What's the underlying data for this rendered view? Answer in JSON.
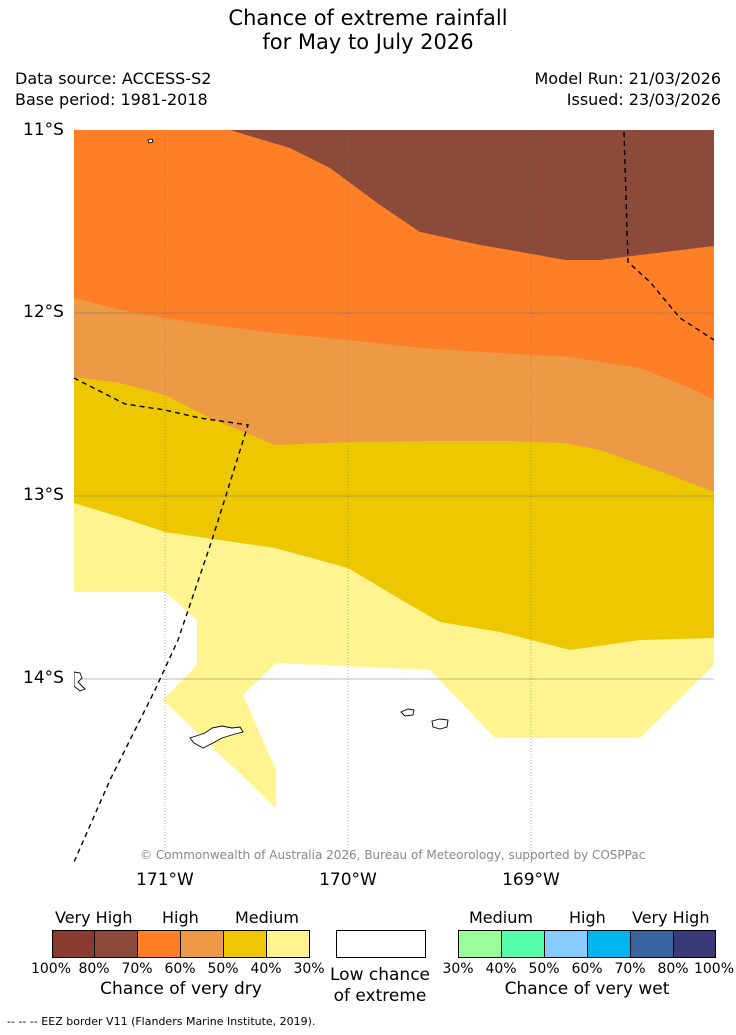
{
  "title": {
    "line1": "Chance of extreme rainfall",
    "line2": "for May to July 2026"
  },
  "meta": {
    "data_source": "Data source: ACCESS-S2",
    "base_period": "Base period: 1981-2018",
    "model_run": "Model Run: 21/03/2026",
    "issued": "Issued: 23/03/2026"
  },
  "map": {
    "lat_labels": [
      "11°S",
      "12°S",
      "13°S",
      "14°S"
    ],
    "lon_labels": [
      "171°W",
      "170°W",
      "169°W"
    ],
    "copyright": "© Commonwealth of Australia 2026, Bureau of Meteorology, supported by COSPPac",
    "colors": {
      "very_dry_80_70": "#8B4A3A",
      "high_dry_70_60": "#FF7F27",
      "high_dry_60_50": "#EC9A45",
      "medium_dry_50_40": "#EDC800",
      "medium_dry_40_30": "#FFF48F"
    }
  },
  "legend": {
    "dry": {
      "headings": [
        "Very High",
        "High",
        "Medium"
      ],
      "ticks": [
        "100%",
        "80%",
        "70%",
        "60%",
        "50%",
        "40%",
        "30%"
      ],
      "caption": "Chance of very dry",
      "colors": [
        "#8B3A2E",
        "#8B4A3A",
        "#FF7F27",
        "#EC9A45",
        "#EDC800",
        "#FFF48F"
      ]
    },
    "low": {
      "caption_line1": "Low chance",
      "caption_line2": "of extreme",
      "color": "#FFFFFF"
    },
    "wet": {
      "headings": [
        "Medium",
        "High",
        "Very High"
      ],
      "ticks": [
        "30%",
        "40%",
        "50%",
        "60%",
        "70%",
        "80%",
        "100%"
      ],
      "caption": "Chance of very wet",
      "colors": [
        "#99FF99",
        "#55FFAA",
        "#88CCFF",
        "#00B4EE",
        "#3A64A0",
        "#3A3A78"
      ]
    }
  },
  "footer": {
    "eez": "-- -- -- EEZ border V11 (Flanders Marine Institute, 2019)."
  }
}
